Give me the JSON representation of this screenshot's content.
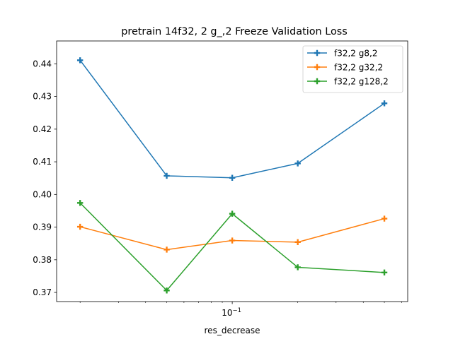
{
  "chart_data": {
    "type": "line",
    "title": "pretrain 14f32, 2 g_,2 Freeze Validation Loss",
    "xlabel": "res_decrease",
    "ylabel": "",
    "x_scale": "log",
    "x": [
      0.02,
      0.05,
      0.1,
      0.2,
      0.5
    ],
    "x_major_tick": {
      "value": 0.1,
      "label": "10^{-1}",
      "base": "10",
      "exponent": "−1"
    },
    "xlim": [
      0.0156,
      0.64
    ],
    "ylim": [
      0.3672,
      0.447
    ],
    "yticks": [
      0.37,
      0.38,
      0.39,
      0.4,
      0.41,
      0.42,
      0.43,
      0.44
    ],
    "ytick_labels": [
      "0.37",
      "0.38",
      "0.39",
      "0.40",
      "0.41",
      "0.42",
      "0.43",
      "0.44"
    ],
    "grid": false,
    "legend_position": "top-right",
    "series": [
      {
        "name": "f32,2 g8,2",
        "color": "#1f77b4",
        "values": [
          0.4411,
          0.4057,
          0.4051,
          0.4095,
          0.4279
        ]
      },
      {
        "name": "f32,2 g32,2",
        "color": "#ff7f0e",
        "values": [
          0.3901,
          0.3831,
          0.3859,
          0.3854,
          0.3926
        ]
      },
      {
        "name": "f32,2 g128,2",
        "color": "#2ca02c",
        "values": [
          0.3974,
          0.3706,
          0.3941,
          0.3777,
          0.3761
        ]
      }
    ]
  }
}
